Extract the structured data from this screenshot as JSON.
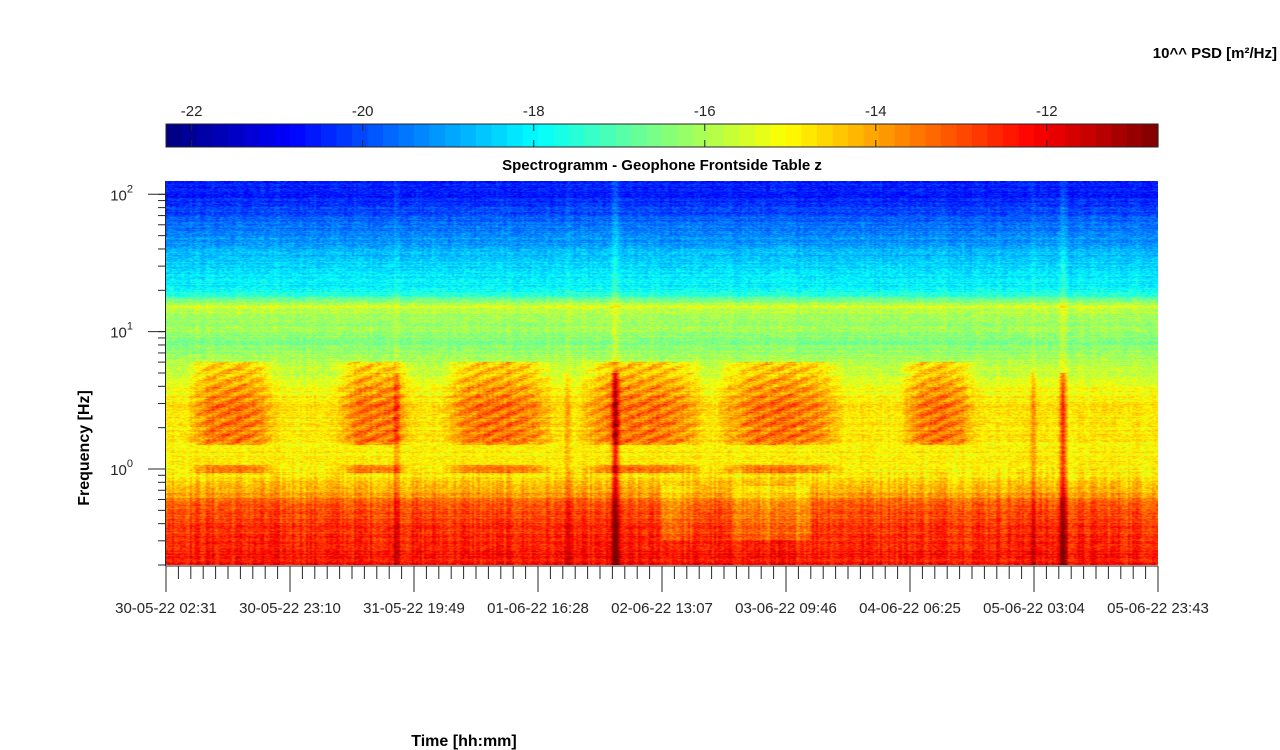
{
  "chart_data": {
    "type": "heatmap",
    "title": "Spectrogramm - Geophone Frontside Table z",
    "colorbar_label": "10^^ PSD [m²/Hz]",
    "colorbar": {
      "colormap": "jet",
      "range": [
        -22.3,
        -10.7
      ],
      "ticks": [
        -22,
        -20,
        -18,
        -16,
        -14,
        -12
      ],
      "tick_labels": [
        "-22",
        "-20",
        "-18",
        "-16",
        "-14",
        "-12"
      ]
    },
    "xlabel": "Time [hh:mm]",
    "ylabel": "Frequency [Hz]",
    "x_tick_labels": [
      "30-05-22 02:31",
      "30-05-22 23:10",
      "31-05-22 19:49",
      "01-06-22 16:28",
      "02-06-22 13:07",
      "03-06-22 09:46",
      "04-06-22 06:25",
      "05-06-22 03:04",
      "05-06-22 23:43"
    ],
    "xlim": [
      "30-05-22 02:31",
      "05-06-22 23:43"
    ],
    "y_scale": "log",
    "ylim": [
      0.2,
      125
    ],
    "y_ticks": [
      1,
      10,
      100
    ],
    "y_tick_labels": [
      {
        "base": "10",
        "exp": "0"
      },
      {
        "base": "10",
        "exp": "1"
      },
      {
        "base": "10",
        "exp": "2"
      }
    ],
    "approx_psd_profile_log10": [
      {
        "freq_hz": 0.25,
        "psd": -12.3
      },
      {
        "freq_hz": 0.5,
        "psd": -13.0
      },
      {
        "freq_hz": 0.9,
        "psd": -14.9
      },
      {
        "freq_hz": 3,
        "psd": -14.8
      },
      {
        "freq_hz": 8,
        "psd": -16.4
      },
      {
        "freq_hz": 15,
        "psd": -15.9
      },
      {
        "freq_hz": 20,
        "psd": -17.9
      },
      {
        "freq_hz": 40,
        "psd": -18.8
      },
      {
        "freq_hz": 100,
        "psd": -20.6
      }
    ],
    "approx_transient_events": [
      "31-05-22 16:00",
      "02-06-22 03:00",
      "05-06-22 01:00",
      "05-06-22 05:00"
    ]
  }
}
